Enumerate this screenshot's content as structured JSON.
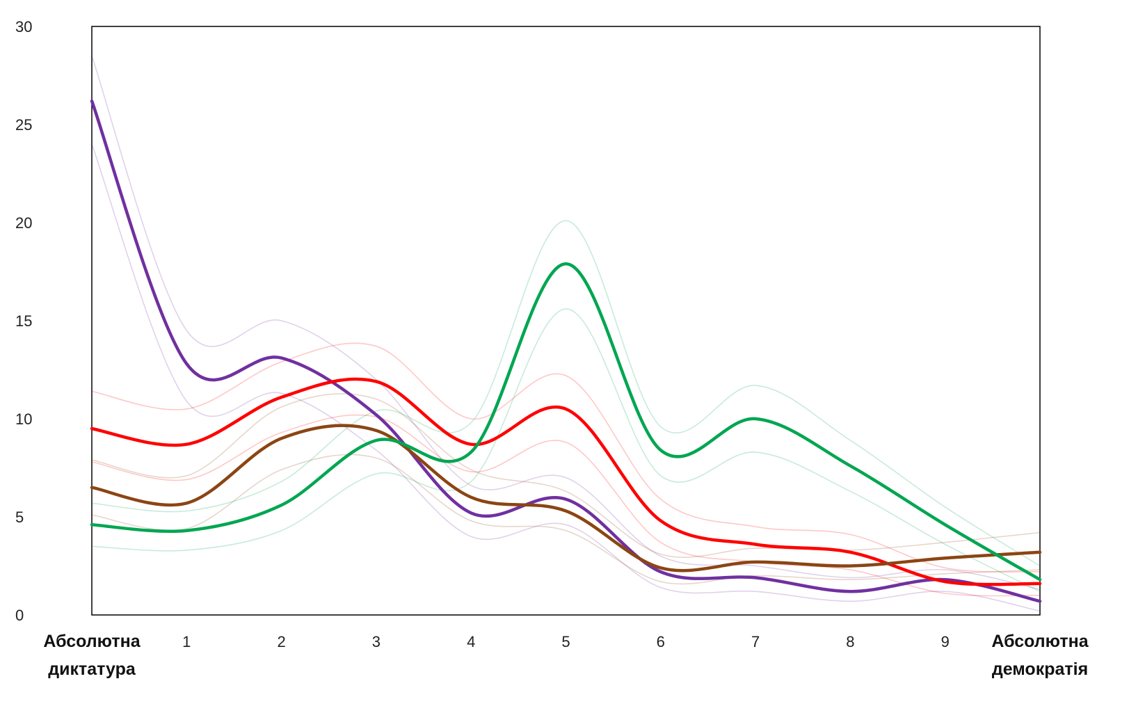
{
  "chart_data": {
    "type": "line",
    "title": "",
    "xlabel": "",
    "ylabel": "",
    "ylim": [
      0,
      30
    ],
    "y_ticks": [
      "0",
      "5",
      "10",
      "15",
      "20",
      "25",
      "30"
    ],
    "categories": [
      "Абсолютна диктатура",
      "1",
      "2",
      "3",
      "4",
      "5",
      "6",
      "7",
      "8",
      "9",
      "Абсолютна демократія"
    ],
    "x_tick_labels": [
      [
        "Абсолютна",
        "диктатура"
      ],
      [
        "1"
      ],
      [
        "2"
      ],
      [
        "3"
      ],
      [
        "4"
      ],
      [
        "5"
      ],
      [
        "6"
      ],
      [
        "7"
      ],
      [
        "8"
      ],
      [
        "9"
      ],
      [
        "Абсолютна",
        "демократія"
      ]
    ],
    "grid": false,
    "legend": "top (cropped)",
    "series": [
      {
        "color": "#7030A0",
        "values": [
          26.2,
          12.8,
          13.1,
          10.2,
          5.2,
          5.9,
          2.2,
          1.9,
          1.2,
          1.8,
          0.7
        ],
        "upper": [
          28.5,
          14.5,
          15.0,
          12.0,
          6.6,
          7.0,
          3.0,
          2.5,
          1.9,
          2.3,
          1.3
        ],
        "lower": [
          24.0,
          10.9,
          11.3,
          8.4,
          4.0,
          4.6,
          1.4,
          1.2,
          0.7,
          1.2,
          0.2
        ]
      },
      {
        "color": "#FF0000",
        "values": [
          9.5,
          8.7,
          11.1,
          11.9,
          8.7,
          10.5,
          4.8,
          3.6,
          3.2,
          1.7,
          1.6
        ],
        "upper": [
          11.4,
          10.5,
          12.9,
          13.7,
          10.0,
          12.2,
          5.9,
          4.5,
          4.1,
          2.4,
          2.2
        ],
        "lower": [
          7.8,
          6.9,
          9.3,
          10.1,
          7.3,
          8.8,
          3.7,
          2.7,
          2.3,
          1.1,
          1.0
        ]
      },
      {
        "color": "#8B4513",
        "values": [
          6.5,
          5.7,
          9.0,
          9.4,
          6.0,
          5.3,
          2.4,
          2.7,
          2.5,
          2.9,
          3.2
        ],
        "upper": [
          7.9,
          7.1,
          10.6,
          11.0,
          7.4,
          6.3,
          3.1,
          3.4,
          3.3,
          3.7,
          4.2
        ],
        "lower": [
          5.1,
          4.4,
          7.4,
          8.0,
          4.8,
          4.3,
          1.7,
          2.0,
          1.8,
          2.1,
          2.3
        ]
      },
      {
        "color": "#00A651",
        "values": [
          4.6,
          4.3,
          5.6,
          8.9,
          8.3,
          17.9,
          8.4,
          10.0,
          7.6,
          4.6,
          1.8
        ],
        "upper": [
          5.7,
          5.3,
          6.8,
          10.4,
          9.8,
          20.1,
          9.6,
          11.7,
          8.9,
          5.5,
          2.5
        ],
        "lower": [
          3.5,
          3.3,
          4.3,
          7.2,
          6.8,
          15.6,
          7.1,
          8.3,
          6.3,
          3.6,
          1.2
        ]
      }
    ]
  }
}
